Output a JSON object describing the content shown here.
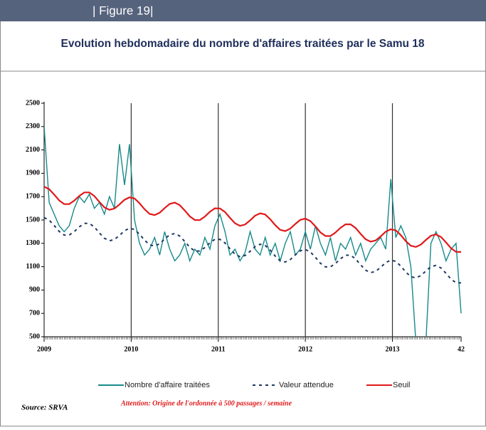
{
  "header": "| Figure 19|",
  "chart_data": {
    "type": "line",
    "title": "Evolution hebdomadaire du nombre d'affaires traitées par le Samu 18",
    "x": [
      0,
      3,
      6,
      9,
      12,
      15,
      18,
      21,
      24,
      27,
      30,
      33,
      36,
      39,
      42,
      45,
      48,
      51,
      54,
      57,
      60,
      63,
      66,
      69,
      72,
      75,
      78,
      81,
      84,
      87,
      90,
      93,
      96,
      99,
      102,
      105,
      108,
      111,
      114,
      117,
      120,
      123,
      126,
      129,
      132,
      135,
      138,
      141,
      144,
      147,
      150,
      153,
      156,
      159,
      162,
      165,
      168,
      171,
      174,
      177,
      180,
      183,
      186,
      189,
      192,
      195,
      198,
      201,
      204,
      207,
      210,
      213,
      216,
      219,
      222,
      225,
      228,
      231,
      234,
      237,
      240,
      243,
      246,
      249
    ],
    "series": [
      {
        "name": "Nombre d'affaire traitées",
        "color": "#17898a",
        "dash": "solid",
        "values": [
          2300,
          1650,
          1550,
          1450,
          1400,
          1450,
          1600,
          1700,
          1650,
          1720,
          1600,
          1650,
          1550,
          1700,
          1600,
          2150,
          1800,
          2150,
          1500,
          1300,
          1200,
          1250,
          1350,
          1200,
          1400,
          1250,
          1150,
          1200,
          1300,
          1150,
          1250,
          1200,
          1350,
          1250,
          1450,
          1550,
          1400,
          1200,
          1250,
          1150,
          1220,
          1400,
          1250,
          1200,
          1350,
          1200,
          1300,
          1150,
          1300,
          1400,
          1200,
          1250,
          1400,
          1250,
          1450,
          1300,
          1200,
          1350,
          1150,
          1300,
          1250,
          1350,
          1200,
          1300,
          1150,
          1250,
          1300,
          1350,
          1250,
          1850,
          1350,
          1450,
          1350,
          1100,
          450,
          420,
          460,
          1300,
          1400,
          1300,
          1150,
          1250,
          1300,
          700
        ]
      },
      {
        "name": "Valeur attendue",
        "color": "#1f3864",
        "dash": "dashed",
        "values": [
          1520,
          1499,
          1453,
          1402,
          1371,
          1371,
          1401,
          1441,
          1471,
          1471,
          1440,
          1389,
          1343,
          1322,
          1333,
          1368,
          1408,
          1429,
          1419,
          1378,
          1327,
          1287,
          1277,
          1297,
          1337,
          1373,
          1384,
          1362,
          1316,
          1266,
          1235,
          1234,
          1264,
          1305,
          1335,
          1334,
          1303,
          1253,
          1207,
          1185,
          1196,
          1232,
          1272,
          1292,
          1282,
          1242,
          1191,
          1150,
          1140,
          1161,
          1201,
          1236,
          1247,
          1226,
          1180,
          1129,
          1098,
          1098,
          1128,
          1168,
          1198,
          1198,
          1167,
          1116,
          1070,
          1049,
          1060,
          1095,
          1135,
          1156,
          1146,
          1105,
          1054,
          1014,
          1004,
          1024,
          1064,
          1100,
          1111,
          1089,
          1043,
          993,
          962,
          961
        ]
      },
      {
        "name": "Seuil",
        "color": "#e0191b",
        "dash": "solid",
        "values": [
          1785,
          1764,
          1718,
          1667,
          1636,
          1636,
          1666,
          1706,
          1736,
          1736,
          1705,
          1654,
          1608,
          1587,
          1598,
          1633,
          1673,
          1694,
          1684,
          1643,
          1592,
          1552,
          1542,
          1562,
          1602,
          1638,
          1649,
          1627,
          1581,
          1531,
          1500,
          1499,
          1529,
          1570,
          1600,
          1599,
          1568,
          1518,
          1472,
          1450,
          1461,
          1497,
          1537,
          1557,
          1547,
          1507,
          1456,
          1415,
          1405,
          1426,
          1466,
          1501,
          1512,
          1491,
          1445,
          1394,
          1363,
          1363,
          1393,
          1433,
          1463,
          1463,
          1432,
          1381,
          1335,
          1314,
          1325,
          1360,
          1400,
          1421,
          1411,
          1370,
          1319,
          1279,
          1269,
          1289,
          1329,
          1365,
          1376,
          1354,
          1308,
          1258,
          1227,
          1226
        ]
      }
    ],
    "xlim": [
      0,
      249
    ],
    "xticks": [
      {
        "value": 0,
        "label": "2009"
      },
      {
        "value": 52,
        "label": "2010"
      },
      {
        "value": 104,
        "label": "2011"
      },
      {
        "value": 156,
        "label": "2012"
      },
      {
        "value": 208,
        "label": "2013"
      },
      {
        "value": 249,
        "label": "42"
      }
    ],
    "ylim": [
      500,
      2500
    ],
    "yticks": [
      500,
      700,
      900,
      1100,
      1300,
      1500,
      1700,
      1900,
      2100,
      2300,
      2500
    ],
    "year_lines": true,
    "source": "Source: SRVA",
    "annotation": "Attention: Origine de l'ordonnée à 500 passages / semaine"
  }
}
